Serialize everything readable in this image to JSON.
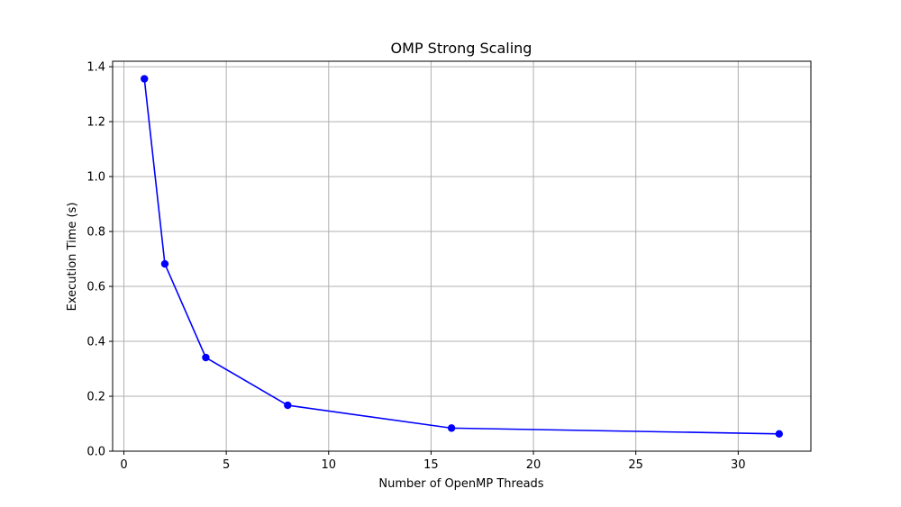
{
  "chart_data": {
    "type": "line",
    "title": "OMP Strong Scaling",
    "xlabel": "Number of OpenMP Threads",
    "ylabel": "Execution Time (s)",
    "x": [
      1,
      2,
      4,
      8,
      16,
      32
    ],
    "series": [
      {
        "values": [
          1.356,
          0.682,
          0.341,
          0.167,
          0.084,
          0.063
        ]
      }
    ],
    "xlim": [
      -0.55,
      33.55
    ],
    "ylim": [
      0,
      1.42
    ],
    "xticks": [
      0,
      5,
      10,
      15,
      20,
      25,
      30
    ],
    "yticks": [
      0.0,
      0.2,
      0.4,
      0.6,
      0.8,
      1.0,
      1.2,
      1.4
    ],
    "xtick_labels": [
      "0",
      "5",
      "10",
      "15",
      "20",
      "25",
      "30"
    ],
    "ytick_labels": [
      "0.0",
      "0.2",
      "0.4",
      "0.6",
      "0.8",
      "1.0",
      "1.2",
      "1.4"
    ],
    "grid": true,
    "line_color": "#0000ff",
    "marker": "circle",
    "legend": false
  }
}
